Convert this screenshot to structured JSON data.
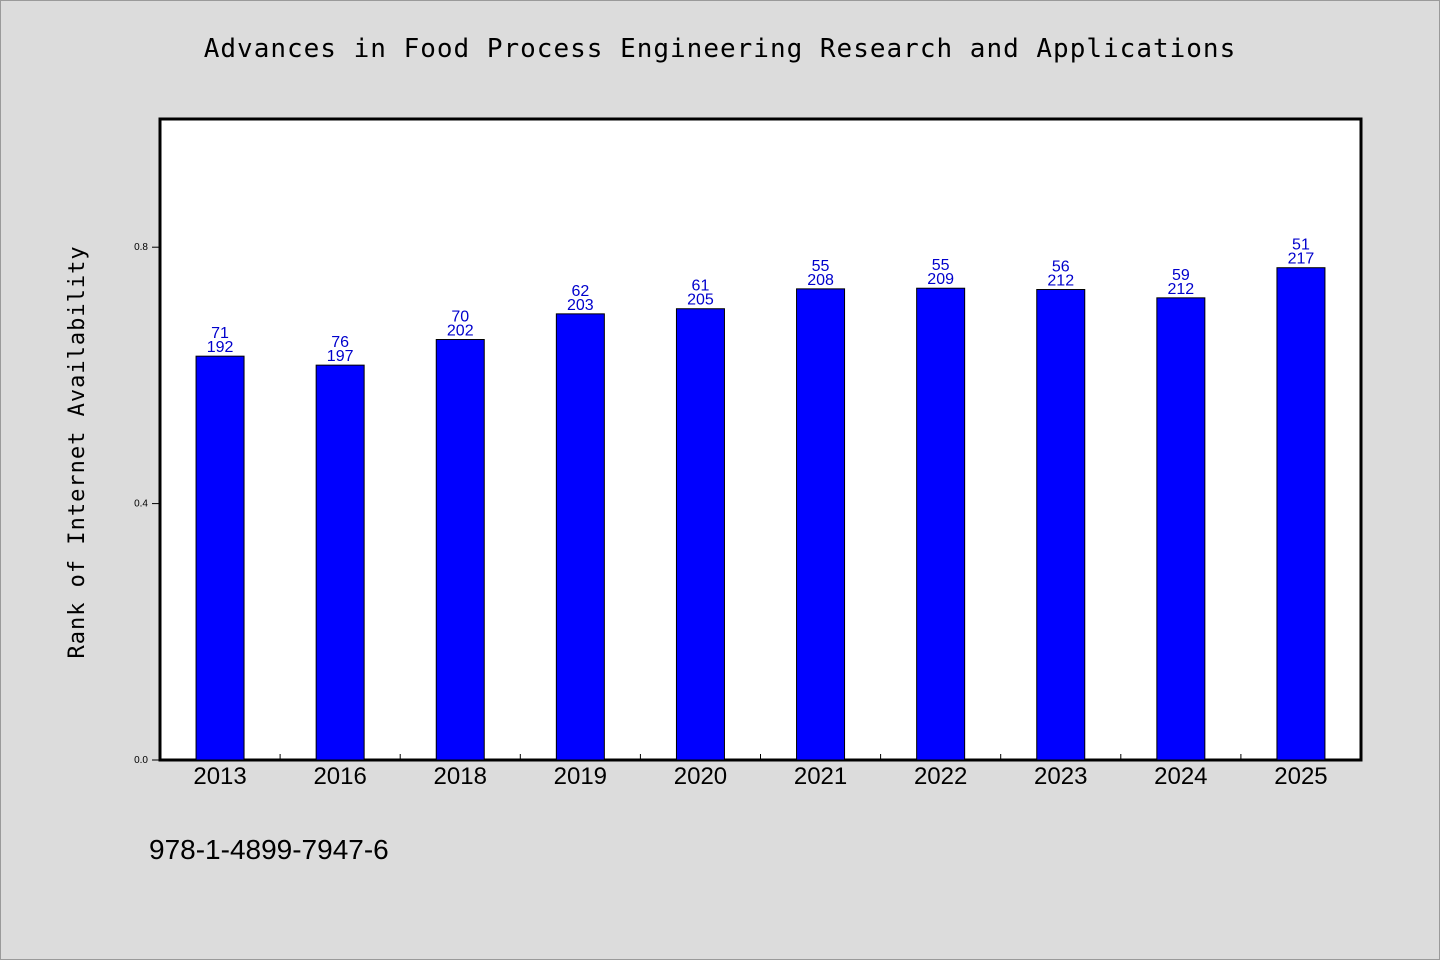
{
  "chart_data": {
    "type": "bar",
    "title": "Advances in Food Process Engineering Research and Applications",
    "xlabel": "",
    "ylabel": "Rank of Internet Availability",
    "ylim": [
      0,
      1.0
    ],
    "yticks": [
      "0.0",
      "0.4",
      "0.8"
    ],
    "categories": [
      "2013",
      "2016",
      "2018",
      "2019",
      "2020",
      "2021",
      "2022",
      "2023",
      "2024",
      "2025"
    ],
    "values": [
      0.63,
      0.616,
      0.656,
      0.696,
      0.704,
      0.735,
      0.736,
      0.734,
      0.721,
      0.768
    ],
    "label_top": [
      "71",
      "76",
      "70",
      "62",
      "61",
      "55",
      "55",
      "56",
      "59",
      "51"
    ],
    "label_bottom": [
      "192",
      "197",
      "202",
      "203",
      "205",
      "208",
      "209",
      "212",
      "212",
      "217"
    ],
    "bar_color": "#0000ff",
    "label_color": "#0000cc",
    "grid": false
  },
  "footer": {
    "isbn": "978-1-4899-7947-6"
  }
}
